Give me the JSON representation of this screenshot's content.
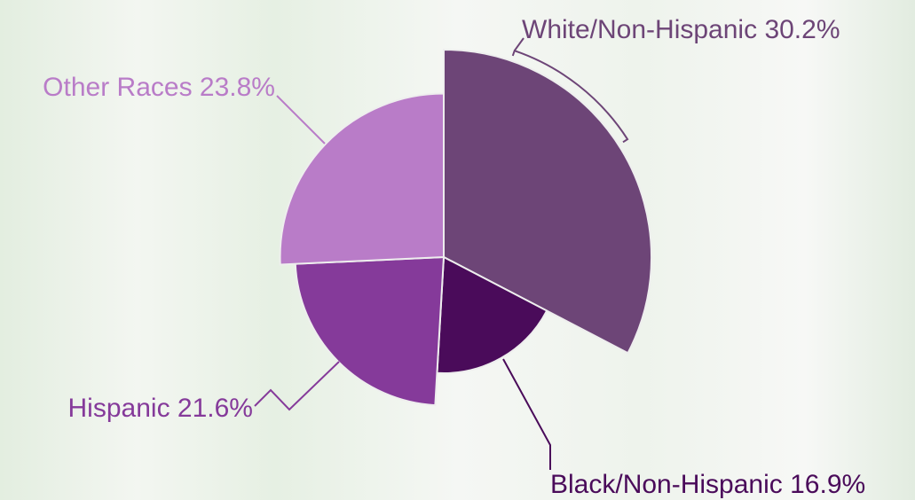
{
  "chart_data": {
    "type": "pie",
    "categories": [
      "White/Non-Hispanic",
      "Black/Non-Hispanic",
      "Hispanic",
      "Other Races"
    ],
    "values": [
      30.2,
      16.9,
      21.6,
      23.8
    ],
    "value_labels": [
      "30.2%",
      "16.9%",
      "21.6%",
      "23.8%"
    ],
    "colors": [
      "#6d4577",
      "#4a0b5a",
      "#853a9a",
      "#b97cc8"
    ]
  }
}
